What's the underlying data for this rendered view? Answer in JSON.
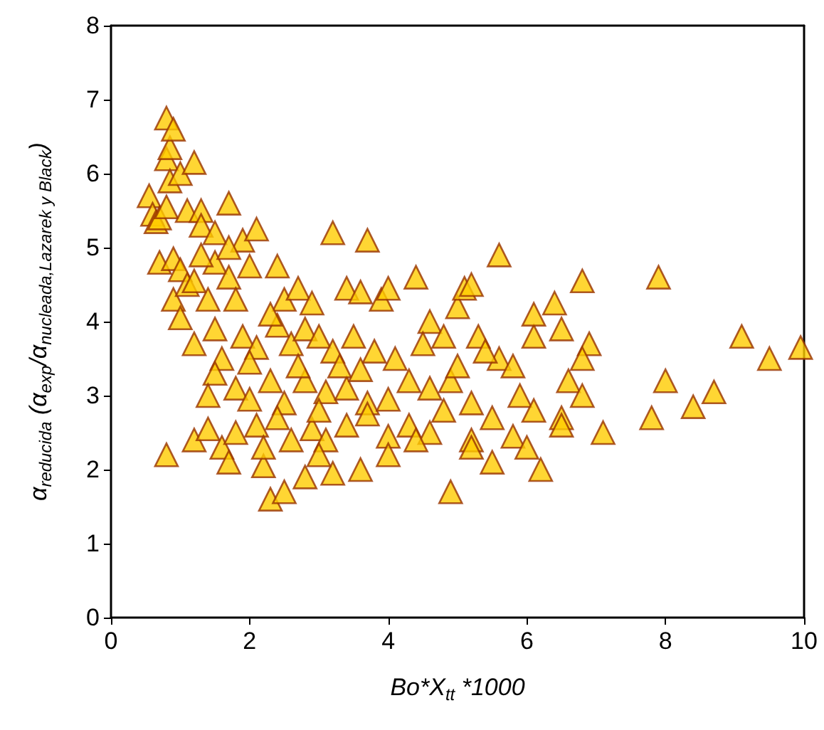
{
  "chart_data": {
    "type": "scatter",
    "xlabel": "Bo*X$_{tt}$ *1000",
    "ylabel": "α$_{reducida}$ (α$_{exp}$/α$_{nucleada,Lazarek y Black}$)",
    "xlim": [
      0,
      10
    ],
    "xticks": [
      0,
      2,
      4,
      6,
      8,
      10
    ],
    "ylim": [
      0,
      8
    ],
    "yticks": [
      0,
      1,
      2,
      3,
      4,
      5,
      6,
      7,
      8
    ],
    "grid": false,
    "marker": "triangle",
    "series": [
      {
        "color": "#ffcc00",
        "x": [
          0.55,
          0.6,
          0.65,
          0.7,
          0.8,
          0.8,
          0.85,
          0.9,
          0.85,
          1.0,
          1.2,
          0.8,
          0.7,
          0.9,
          1.0,
          0.9,
          1.0,
          1.1,
          1.1,
          1.3,
          1.3,
          1.5,
          1.7,
          1.9,
          2.1,
          1.5,
          1.2,
          1.4,
          1.7,
          2.0,
          1.8,
          2.4,
          2.5,
          2.7,
          2.9,
          3.2,
          3.7,
          3.4,
          3.6,
          3.9,
          4.0,
          1.2,
          1.5,
          1.6,
          1.9,
          2.1,
          2.4,
          2.6,
          2.8,
          3.0,
          3.2,
          3.5,
          3.8,
          4.1,
          4.4,
          4.6,
          4.8,
          5.0,
          5.1,
          5.2,
          5.6,
          5.3,
          5.6,
          5.4,
          5.8,
          6.1,
          6.1,
          6.4,
          6.5,
          6.8,
          6.9,
          6.8,
          7.9,
          6.6,
          6.5,
          6.8,
          1.5,
          1.8,
          2.0,
          2.3,
          2.5,
          2.8,
          3.1,
          3.4,
          3.7,
          4.0,
          4.3,
          4.6,
          4.9,
          5.2,
          5.0,
          1.2,
          1.4,
          1.6,
          1.8,
          2.1,
          2.4,
          2.6,
          2.9,
          3.1,
          3.4,
          3.7,
          4.0,
          4.3,
          4.6,
          4.8,
          5.2,
          5.5,
          0.8,
          1.7,
          2.2,
          2.3,
          2.5,
          2.8,
          3.2,
          3.6,
          4.0,
          4.9,
          5.5,
          5.8,
          6.0,
          6.2,
          6.5,
          7.1,
          7.8,
          8.0,
          8.4,
          8.7,
          9.1,
          9.5,
          9.95,
          2.2,
          3.0,
          4.4,
          5.2,
          3.3,
          2.0,
          1.4,
          2.7,
          4.5,
          5.9,
          6.1,
          3.0,
          3.6,
          2.3,
          1.3,
          1.7
        ],
        "values": [
          5.7,
          5.45,
          5.35,
          5.4,
          6.75,
          6.2,
          6.35,
          6.6,
          5.9,
          6.0,
          6.15,
          5.55,
          4.8,
          4.85,
          4.7,
          4.3,
          4.05,
          4.5,
          5.5,
          5.5,
          5.3,
          5.2,
          5.6,
          5.1,
          5.25,
          4.8,
          4.55,
          4.3,
          4.6,
          4.75,
          4.3,
          4.75,
          4.3,
          4.45,
          4.25,
          5.2,
          5.1,
          4.45,
          4.4,
          4.3,
          4.45,
          3.7,
          3.9,
          3.5,
          3.8,
          3.65,
          3.95,
          3.7,
          3.9,
          3.8,
          3.6,
          3.8,
          3.6,
          3.5,
          4.6,
          4.0,
          3.8,
          4.2,
          4.45,
          4.5,
          4.9,
          3.8,
          3.5,
          3.6,
          3.4,
          3.8,
          4.1,
          4.25,
          3.9,
          4.55,
          3.7,
          3.5,
          4.6,
          3.2,
          2.7,
          3.0,
          3.3,
          3.1,
          2.95,
          3.2,
          2.9,
          3.2,
          3.05,
          3.1,
          2.9,
          2.95,
          3.2,
          3.1,
          3.2,
          2.9,
          3.4,
          2.4,
          2.55,
          2.3,
          2.5,
          2.6,
          2.7,
          2.4,
          2.55,
          2.4,
          2.6,
          2.75,
          2.45,
          2.6,
          2.5,
          2.8,
          2.4,
          2.7,
          2.2,
          2.1,
          2.05,
          1.6,
          1.7,
          1.9,
          1.95,
          2.0,
          2.2,
          1.7,
          2.1,
          2.45,
          2.3,
          2.0,
          2.6,
          2.5,
          2.7,
          3.2,
          2.85,
          3.05,
          3.8,
          3.5,
          3.65,
          2.3,
          2.2,
          2.4,
          2.3,
          3.4,
          3.45,
          3.0,
          3.4,
          3.7,
          3.0,
          2.8,
          2.8,
          3.35,
          4.1,
          4.9,
          5.0
        ]
      }
    ]
  }
}
